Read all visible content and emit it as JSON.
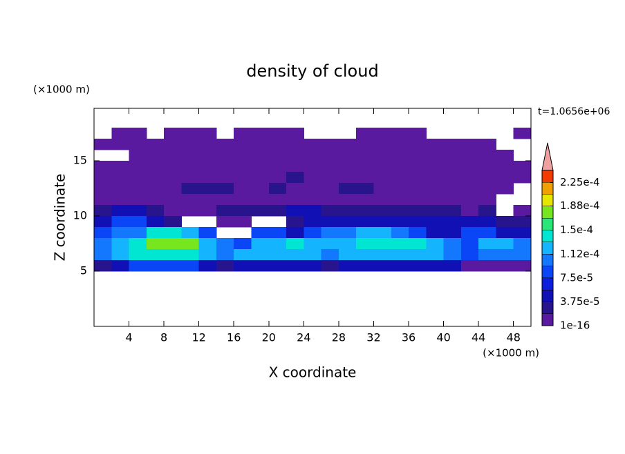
{
  "chart_data": {
    "type": "contour",
    "title": "density of cloud",
    "xlabel": "X coordinate",
    "ylabel": "Z coordinate",
    "x_unit": "(×1000 m)",
    "y_unit": "(×1000 m)",
    "annotation": "t=1.0656e+06",
    "xlim": [
      0,
      50
    ],
    "ylim": [
      0,
      19.75
    ],
    "xticks": [
      4,
      8,
      12,
      16,
      20,
      24,
      28,
      32,
      36,
      40,
      44,
      48
    ],
    "yticks": [
      5,
      10,
      15
    ],
    "x": [
      1,
      3,
      5,
      7,
      9,
      11,
      13,
      15,
      17,
      19,
      21,
      23,
      25,
      27,
      29,
      31,
      33,
      35,
      37,
      39,
      41,
      43,
      45,
      47,
      49
    ],
    "y": [
      17.5,
      16.5,
      15.5,
      14.5,
      13.5,
      12.5,
      11.5,
      10.5,
      9.5,
      8.5,
      7.5,
      6.5,
      5.5
    ],
    "z": [
      [
        null,
        1e-05,
        1e-05,
        null,
        1e-05,
        1e-05,
        1e-05,
        null,
        1e-05,
        1e-05,
        1e-05,
        1e-05,
        null,
        null,
        null,
        1e-05,
        1e-05,
        1e-05,
        1e-05,
        null,
        null,
        null,
        null,
        null,
        1e-05
      ],
      [
        1e-05,
        1e-05,
        1e-05,
        1e-05,
        1e-05,
        1e-05,
        1e-05,
        1e-05,
        1e-05,
        1e-05,
        1e-05,
        1e-05,
        1e-05,
        1e-05,
        1e-05,
        1e-05,
        1e-05,
        1e-05,
        1e-05,
        1e-05,
        1e-05,
        1e-05,
        1e-05,
        null,
        null
      ],
      [
        null,
        null,
        1e-05,
        1e-05,
        1e-05,
        1e-05,
        1e-05,
        1e-05,
        1e-05,
        1e-05,
        1e-05,
        1e-05,
        1e-05,
        1e-05,
        1e-05,
        1e-05,
        1e-05,
        1e-05,
        1e-05,
        1e-05,
        1e-05,
        1e-05,
        1e-05,
        1e-05,
        null
      ],
      [
        1e-05,
        1e-05,
        1e-05,
        1e-05,
        1e-05,
        1e-05,
        1e-05,
        1e-05,
        1e-05,
        1e-05,
        1e-05,
        1e-05,
        1e-05,
        1e-05,
        1e-05,
        1e-05,
        1e-05,
        1e-05,
        1e-05,
        1e-05,
        1e-05,
        1e-05,
        1e-05,
        1e-05,
        1e-05
      ],
      [
        1e-05,
        1e-05,
        1e-05,
        1e-05,
        1e-05,
        1e-05,
        1e-05,
        1e-05,
        1e-05,
        1e-05,
        1e-05,
        3e-05,
        1e-05,
        1e-05,
        1e-05,
        1e-05,
        1e-05,
        1e-05,
        1e-05,
        1e-05,
        1e-05,
        1e-05,
        1e-05,
        1e-05,
        1e-05
      ],
      [
        1e-05,
        1e-05,
        1e-05,
        1e-05,
        1e-05,
        3e-05,
        3e-05,
        3e-05,
        1e-05,
        1e-05,
        3e-05,
        1e-05,
        1e-05,
        1e-05,
        3e-05,
        3e-05,
        1e-05,
        1e-05,
        1e-05,
        1e-05,
        1e-05,
        1e-05,
        1e-05,
        1e-05,
        null
      ],
      [
        1e-05,
        1e-05,
        1e-05,
        1e-05,
        1e-05,
        1e-05,
        1e-05,
        1e-05,
        1e-05,
        1e-05,
        1e-05,
        1e-05,
        1e-05,
        1e-05,
        1e-05,
        1e-05,
        1e-05,
        1e-05,
        1e-05,
        1e-05,
        1e-05,
        1e-05,
        1e-05,
        null,
        null
      ],
      [
        3e-05,
        5e-05,
        5e-05,
        3e-05,
        1e-05,
        1e-05,
        1e-05,
        3e-05,
        3e-05,
        3e-05,
        3e-05,
        5e-05,
        5e-05,
        3e-05,
        3e-05,
        3e-05,
        3e-05,
        3e-05,
        3e-05,
        3e-05,
        3e-05,
        1e-05,
        3e-05,
        null,
        1e-05
      ],
      [
        5e-05,
        8e-05,
        8e-05,
        5e-05,
        3e-05,
        null,
        null,
        1e-05,
        1e-05,
        null,
        null,
        3e-05,
        5e-05,
        5e-05,
        5e-05,
        5e-05,
        5e-05,
        5e-05,
        5e-05,
        5e-05,
        5e-05,
        5e-05,
        5e-05,
        3e-05,
        3e-05
      ],
      [
        8e-05,
        0.0001,
        0.0001,
        0.00014,
        0.00014,
        0.00012,
        8e-05,
        null,
        null,
        8e-05,
        8e-05,
        5e-05,
        8e-05,
        0.0001,
        0.0001,
        0.00012,
        0.00012,
        0.0001,
        8e-05,
        5e-05,
        5e-05,
        8e-05,
        8e-05,
        5e-05,
        5e-05
      ],
      [
        0.0001,
        0.00012,
        0.00014,
        0.00017,
        0.00017,
        0.00017,
        0.00012,
        0.0001,
        8e-05,
        0.00012,
        0.00012,
        0.00014,
        0.00012,
        0.00012,
        0.00012,
        0.00014,
        0.00014,
        0.00014,
        0.00014,
        0.00012,
        0.0001,
        8e-05,
        0.00012,
        0.00012,
        0.0001
      ],
      [
        0.0001,
        0.00012,
        0.00014,
        0.00014,
        0.00014,
        0.00014,
        0.00012,
        0.0001,
        0.00012,
        0.00012,
        0.00012,
        0.00012,
        0.00012,
        0.0001,
        0.00012,
        0.00012,
        0.00012,
        0.00012,
        0.00012,
        0.00012,
        0.0001,
        8e-05,
        0.0001,
        0.0001,
        0.0001
      ],
      [
        3e-05,
        5e-05,
        8e-05,
        8e-05,
        8e-05,
        8e-05,
        5e-05,
        3e-05,
        5e-05,
        5e-05,
        5e-05,
        5e-05,
        5e-05,
        3e-05,
        5e-05,
        5e-05,
        5e-05,
        5e-05,
        5e-05,
        5e-05,
        5e-05,
        1e-05,
        1e-05,
        1e-05,
        1e-05
      ]
    ],
    "levels": [
      1e-16,
      1.875e-05,
      3.75e-05,
      5.625e-05,
      7.5e-05,
      9.375e-05,
      0.0001125,
      0.00013125,
      0.00015,
      0.00016875,
      0.0001875,
      0.00020625,
      0.000225,
      0.00024375
    ],
    "colors": [
      "#5a1aa0",
      "#28148c",
      "#1010b4",
      "#0a1edc",
      "#0a46f5",
      "#1478ff",
      "#14b4ff",
      "#00e6d2",
      "#28e678",
      "#78e61e",
      "#e6e600",
      "#f0a000",
      "#f03c00",
      "#f0a0a0"
    ],
    "colorbar_ticks": [
      1e-16,
      {
        "value": 3.75e-05,
        "label": "3.75e-5"
      },
      {
        "value": 7.5e-05,
        "label": "7.5e-5"
      },
      {
        "value": 0.000112,
        "label": "1.12e-4"
      },
      {
        "value": 0.00015,
        "label": "1.5e-4"
      },
      {
        "value": 0.000188,
        "label": "1.88e-4"
      },
      {
        "value": 0.000225,
        "label": "2.25e-4"
      }
    ]
  }
}
